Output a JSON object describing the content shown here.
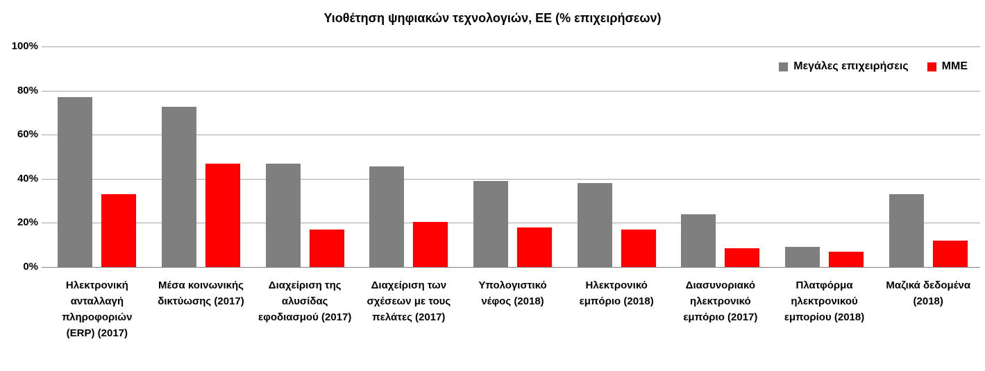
{
  "chart_data": {
    "type": "bar",
    "title": "Υιοθέτηση ψηφιακών τεχνολογιών, ΕΕ (% επιχειρήσεων)",
    "categories": [
      "Ηλεκτρονική ανταλλαγή πληροφοριών (ERP) (2017)",
      "Μέσα κοινωνικής δικτύωσης (2017)",
      "Διαχείριση της αλυσίδας εφοδιασμού (2017)",
      "Διαχείριση των σχέσεων με τους πελάτες (2017)",
      "Υπολογιστικό νέφος (2018)",
      "Ηλεκτρονικό εμπόριο (2018)",
      "Διασυνοριακό ηλεκτρονικό εμπόριο (2017)",
      "Πλατφόρμα ηλεκτρονικού εμπορίου (2018)",
      "Μαζικά δεδομένα (2018)"
    ],
    "series": [
      {
        "name": "Μεγάλες επιχειρήσεις",
        "color": "#7F7F7F",
        "values": [
          77,
          72.5,
          47,
          45.5,
          39,
          38,
          24,
          9,
          33
        ]
      },
      {
        "name": "ΜΜΕ",
        "color": "#FF0000",
        "values": [
          33,
          47,
          17,
          20.5,
          18,
          17,
          8.5,
          7,
          12
        ]
      }
    ],
    "ylim": [
      0,
      100
    ],
    "yticks": [
      "0%",
      "20%",
      "40%",
      "60%",
      "80%",
      "100%"
    ],
    "grid": true,
    "grid_color": "#A6A6A6",
    "axis_color": "#808080",
    "legend_position": "top-right"
  }
}
